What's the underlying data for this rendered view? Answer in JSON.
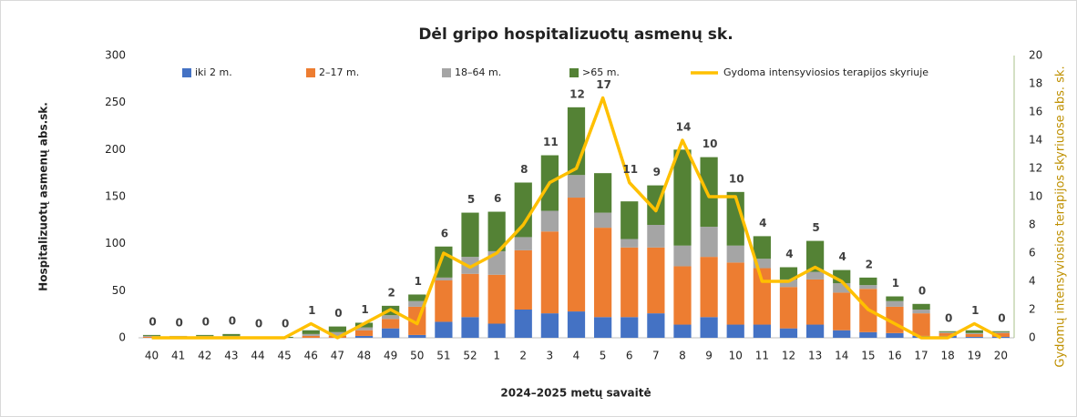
{
  "chart_data": {
    "type": "bar",
    "stacked": true,
    "title": "Dėl gripo hospitalizuotų asmenų sk.",
    "x_label": "2024–2025 metų savaitė",
    "y_label": "Hospitalizuotų asmenų abs.sk.",
    "y2_label": "Gydomų intensyviosios terapijos skyriuose abs. sk.",
    "categories": [
      "40",
      "41",
      "42",
      "43",
      "44",
      "45",
      "46",
      "47",
      "48",
      "49",
      "50",
      "51",
      "52",
      "1",
      "2",
      "3",
      "4",
      "5",
      "6",
      "7",
      "8",
      "9",
      "10",
      "11",
      "12",
      "13",
      "14",
      "15",
      "16",
      "17",
      "18",
      "19",
      "20"
    ],
    "series": [
      {
        "name": "iki 2 m.",
        "color": "#4472c4",
        "values": [
          0,
          0,
          0,
          0,
          0,
          0,
          0,
          0,
          2,
          10,
          3,
          17,
          22,
          15,
          30,
          26,
          28,
          22,
          22,
          26,
          14,
          22,
          14,
          14,
          10,
          14,
          8,
          6,
          5,
          2,
          2,
          1,
          1
        ]
      },
      {
        "name": "2–17 m.",
        "color": "#ed7d31",
        "values": [
          1,
          1,
          1,
          1,
          0,
          0,
          2,
          2,
          6,
          10,
          30,
          44,
          46,
          52,
          63,
          87,
          121,
          95,
          74,
          70,
          62,
          64,
          66,
          60,
          44,
          48,
          40,
          46,
          28,
          24,
          3,
          3,
          4
        ]
      },
      {
        "name": "18–64 m.",
        "color": "#a5a5a5",
        "values": [
          1,
          1,
          1,
          1,
          0,
          0,
          2,
          4,
          3,
          4,
          6,
          3,
          18,
          25,
          14,
          22,
          24,
          16,
          9,
          24,
          22,
          32,
          18,
          10,
          8,
          8,
          10,
          4,
          6,
          4,
          1,
          1,
          1
        ]
      },
      {
        "name": ">65 m.",
        "color": "#548235",
        "values": [
          1,
          0,
          1,
          2,
          1,
          1,
          4,
          6,
          5,
          10,
          7,
          33,
          47,
          42,
          58,
          59,
          72,
          42,
          40,
          42,
          102,
          74,
          57,
          24,
          13,
          33,
          14,
          8,
          5,
          6,
          1,
          3,
          1
        ]
      },
      {
        "name": "Gydoma intensyviosios terapijos skyriuje",
        "type": "line",
        "axis": "y2",
        "color": "#ffc000",
        "values": [
          0,
          0,
          0,
          0,
          0,
          0,
          1,
          0,
          1,
          2,
          1,
          6,
          5,
          6,
          8,
          11,
          12,
          17,
          11,
          9,
          14,
          10,
          10,
          4,
          4,
          5,
          4,
          2,
          1,
          0,
          0,
          1,
          0
        ]
      }
    ],
    "ylim": [
      0,
      300
    ],
    "yticks": [
      0,
      50,
      100,
      150,
      200,
      250,
      300
    ],
    "y2lim": [
      0,
      20
    ],
    "y2ticks": [
      0,
      2,
      4,
      6,
      8,
      10,
      12,
      14,
      16,
      18,
      20
    ],
    "grid": false,
    "legend": "top"
  }
}
